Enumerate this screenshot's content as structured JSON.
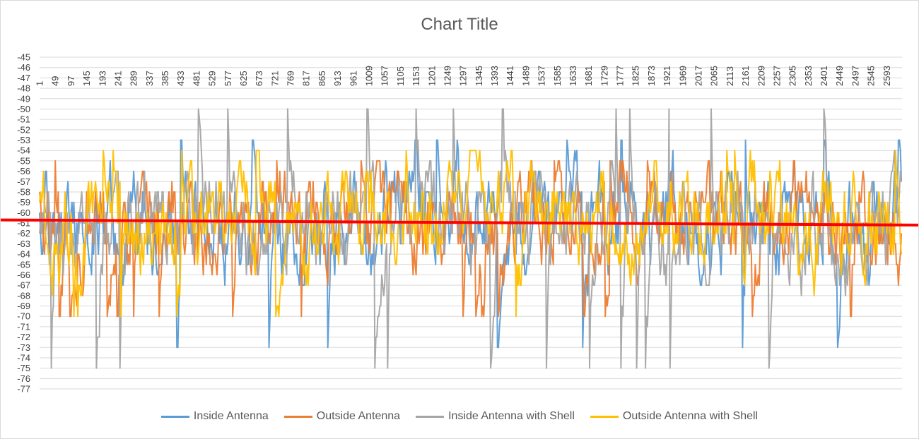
{
  "chart_data": {
    "type": "line",
    "title": "Chart Title",
    "xlabel": "",
    "ylabel": "",
    "ylim": [
      -77,
      -45
    ],
    "y_ticks": [
      -45,
      -46,
      -47,
      -48,
      -49,
      -50,
      -51,
      -52,
      -53,
      -54,
      -55,
      -56,
      -57,
      -58,
      -59,
      -60,
      -61,
      -62,
      -63,
      -64,
      -65,
      -66,
      -67,
      -68,
      -69,
      -70,
      -71,
      -72,
      -73,
      -74,
      -75,
      -76,
      -77
    ],
    "x_range": [
      1,
      2640
    ],
    "x_tick_labels": [
      "1",
      "49",
      "97",
      "145",
      "193",
      "241",
      "289",
      "337",
      "385",
      "433",
      "481",
      "529",
      "577",
      "625",
      "673",
      "721",
      "769",
      "817",
      "865",
      "913",
      "961",
      "1009",
      "1057",
      "1105",
      "1153",
      "1201",
      "1249",
      "1297",
      "1345",
      "1393",
      "1441",
      "1489",
      "1537",
      "1585",
      "1633",
      "1681",
      "1729",
      "1777",
      "1825",
      "1873",
      "1921",
      "1969",
      "2017",
      "2065",
      "2113",
      "2161",
      "2209",
      "2257",
      "2305",
      "2353",
      "2401",
      "2449",
      "2497",
      "2545",
      "2593"
    ],
    "grid": true,
    "legend_position": "bottom",
    "series": [
      {
        "name": "Inside Antenna",
        "color": "#5b9bd5",
        "min": -73,
        "max": -53,
        "mean": -61
      },
      {
        "name": "Outside Antenna",
        "color": "#ed7d31",
        "min": -70,
        "max": -55,
        "mean": -61
      },
      {
        "name": "Inside Antenna with Shell",
        "color": "#a5a5a5",
        "min": -75,
        "max": -50,
        "mean": -61
      },
      {
        "name": "Outside Antenna with Shell",
        "color": "#ffc000",
        "min": -70,
        "max": -54,
        "mean": -61
      }
    ],
    "reference_line": {
      "color": "#ff0000",
      "y_start": -60.7,
      "y_end": -61.2
    }
  }
}
